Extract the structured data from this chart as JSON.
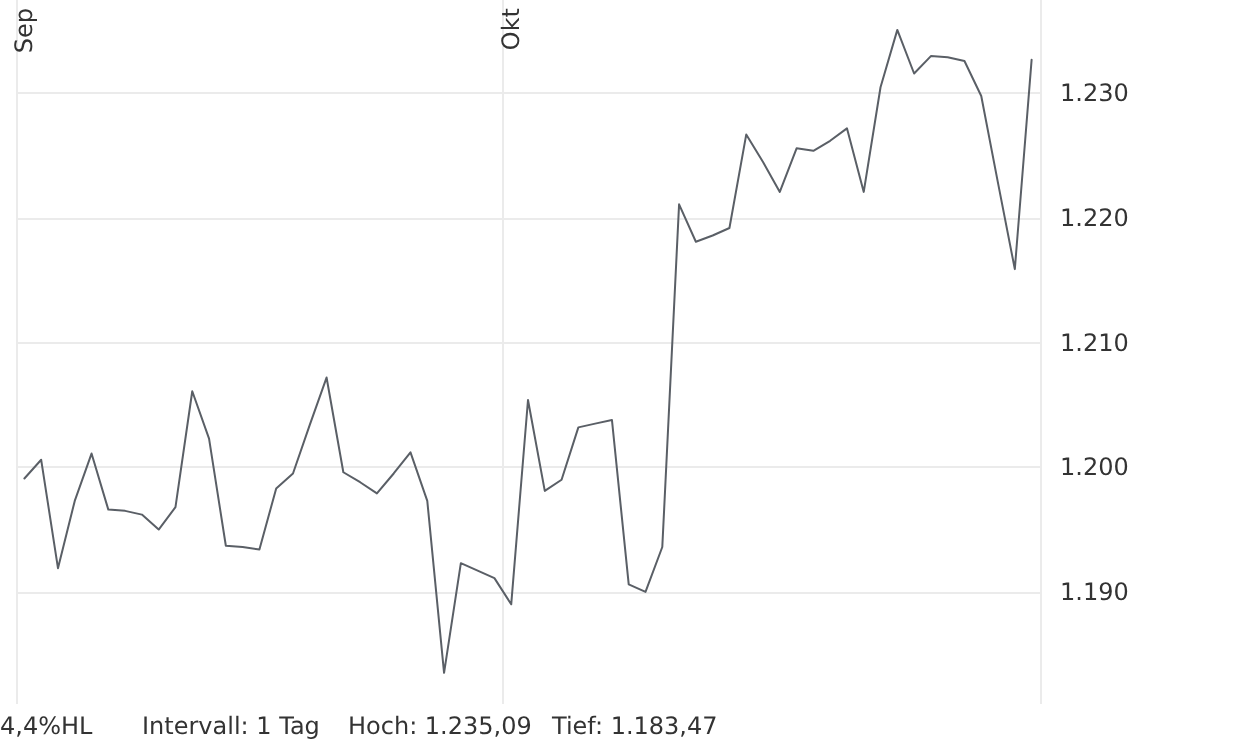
{
  "chart_data": {
    "type": "line",
    "categories": [
      "Sep",
      null,
      null,
      null,
      null,
      null,
      null,
      null,
      null,
      null,
      null,
      null,
      null,
      null,
      null,
      null,
      null,
      null,
      null,
      null,
      null,
      null,
      null,
      null,
      null,
      null,
      null,
      null,
      null,
      "Okt",
      null,
      null,
      null,
      null,
      null,
      null,
      null,
      null,
      null,
      null,
      null,
      null,
      null,
      null,
      null,
      null,
      null,
      null,
      null,
      null,
      null,
      null,
      null,
      null,
      null,
      null,
      null,
      null,
      null,
      null,
      null
    ],
    "series": [
      {
        "color": "#5a5f66",
        "values": [
          1199.1,
          1200.6,
          1191.9,
          1197.3,
          1201.1,
          1196.6,
          1196.5,
          1196.2,
          1195.0,
          1196.8,
          1206.1,
          1202.3,
          1193.7,
          1193.6,
          1193.4,
          1198.3,
          1199.5,
          1203.4,
          1207.2,
          1199.6,
          1198.8,
          1197.9,
          1199.5,
          1201.2,
          1197.3,
          1183.5,
          1192.3,
          1191.7,
          1191.1,
          1189.0,
          1205.4,
          1198.1,
          1199.0,
          1203.2,
          1203.5,
          1203.8,
          1190.6,
          1190.0,
          1193.6,
          1221.1,
          1218.1,
          1218.6,
          1219.2,
          1226.7,
          1224.5,
          1222.1,
          1225.6,
          1225.4,
          1226.2,
          1227.2,
          1222.1,
          1230.5,
          1235.1,
          1231.6,
          1233.0,
          1232.9,
          1232.6,
          1229.8,
          1222.8,
          1215.9,
          1232.7
        ]
      }
    ],
    "ylim": [
      1181,
      1237.5
    ],
    "yticks": [
      {
        "value": 1190,
        "label": "1.190"
      },
      {
        "value": 1200,
        "label": "1.200"
      },
      {
        "value": 1210,
        "label": "1.210"
      },
      {
        "value": 1220,
        "label": "1.220"
      },
      {
        "value": 1230,
        "label": "1.230"
      }
    ],
    "grid": true,
    "marker": "none",
    "line_style": "solid",
    "annotations": [
      "4,4%HL",
      "Intervall: 1 Tag",
      "Hoch: 1.235,09",
      "Tief: 1.183,47"
    ]
  }
}
